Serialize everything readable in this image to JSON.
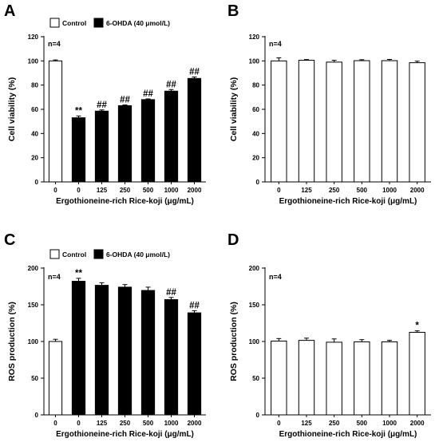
{
  "legend": {
    "control": "Control",
    "treated": "6-OHDA (40 μmol/L)"
  },
  "chart_data": [
    {
      "panel_label": "A",
      "type": "bar",
      "ylabel": "Cell viability (%)",
      "xlabel": "Ergothioneine-rich Rice-koji (μg/mL)",
      "categories": [
        "0",
        "0",
        "125",
        "250",
        "500",
        "1000",
        "2000"
      ],
      "values": [
        100,
        53,
        58.5,
        63,
        68,
        75,
        85.5
      ],
      "errors": [
        0.8,
        1.5,
        1,
        0.6,
        0.6,
        1.3,
        1.2
      ],
      "fills": [
        "white",
        "black",
        "black",
        "black",
        "black",
        "black",
        "black"
      ],
      "annotations": [
        "",
        "**",
        "##",
        "##",
        "##",
        "##",
        "##"
      ],
      "ylim": [
        0,
        120
      ],
      "yticks": [
        0,
        20,
        40,
        60,
        80,
        100,
        120
      ],
      "n_label": "n=4",
      "legend": true
    },
    {
      "panel_label": "B",
      "type": "bar",
      "ylabel": "Cell viability (%)",
      "xlabel": "Ergothioneine-rich Rice-koji (μg/mL)",
      "categories": [
        "0",
        "125",
        "250",
        "500",
        "1000",
        "2000"
      ],
      "values": [
        100,
        100.5,
        99,
        100.2,
        100.2,
        98.5
      ],
      "errors": [
        2.5,
        0.6,
        1.5,
        0.8,
        1,
        1.3
      ],
      "fills": [
        "white",
        "white",
        "white",
        "white",
        "white",
        "white"
      ],
      "annotations": [
        "",
        "",
        "",
        "",
        "",
        ""
      ],
      "ylim": [
        0,
        120
      ],
      "yticks": [
        0,
        20,
        40,
        60,
        80,
        100,
        120
      ],
      "n_label": "n=4",
      "legend": false
    },
    {
      "panel_label": "C",
      "type": "bar",
      "ylabel": "ROS production (%)",
      "xlabel": "Ergothioneine-rich Rice-koji (μg/mL)",
      "categories": [
        "0",
        "0",
        "125",
        "250",
        "500",
        "1000",
        "2000"
      ],
      "values": [
        100,
        182,
        176.5,
        174,
        169.5,
        157,
        139
      ],
      "errors": [
        3,
        4,
        3.5,
        3.5,
        4.5,
        3,
        3
      ],
      "fills": [
        "white",
        "black",
        "black",
        "black",
        "black",
        "black",
        "black"
      ],
      "annotations": [
        "",
        "**",
        "",
        "",
        "",
        "##",
        "##"
      ],
      "ylim": [
        0,
        200
      ],
      "yticks": [
        0,
        50,
        100,
        150,
        200
      ],
      "n_label": "n=4",
      "legend": true
    },
    {
      "panel_label": "D",
      "type": "bar",
      "ylabel": "ROS production (%)",
      "xlabel": "Ergothioneine-rich Rice-koji (μg/mL)",
      "categories": [
        "0",
        "125",
        "250",
        "500",
        "1000",
        "2000"
      ],
      "values": [
        100.5,
        101.5,
        99,
        99.5,
        99.5,
        112.5
      ],
      "errors": [
        3.5,
        3,
        4.5,
        3,
        2,
        2
      ],
      "fills": [
        "white",
        "white",
        "white",
        "white",
        "white",
        "white"
      ],
      "annotations": [
        "",
        "",
        "",
        "",
        "",
        "*"
      ],
      "ylim": [
        0,
        200
      ],
      "yticks": [
        0,
        50,
        100,
        150,
        200
      ],
      "n_label": "n=4",
      "legend": false
    }
  ]
}
